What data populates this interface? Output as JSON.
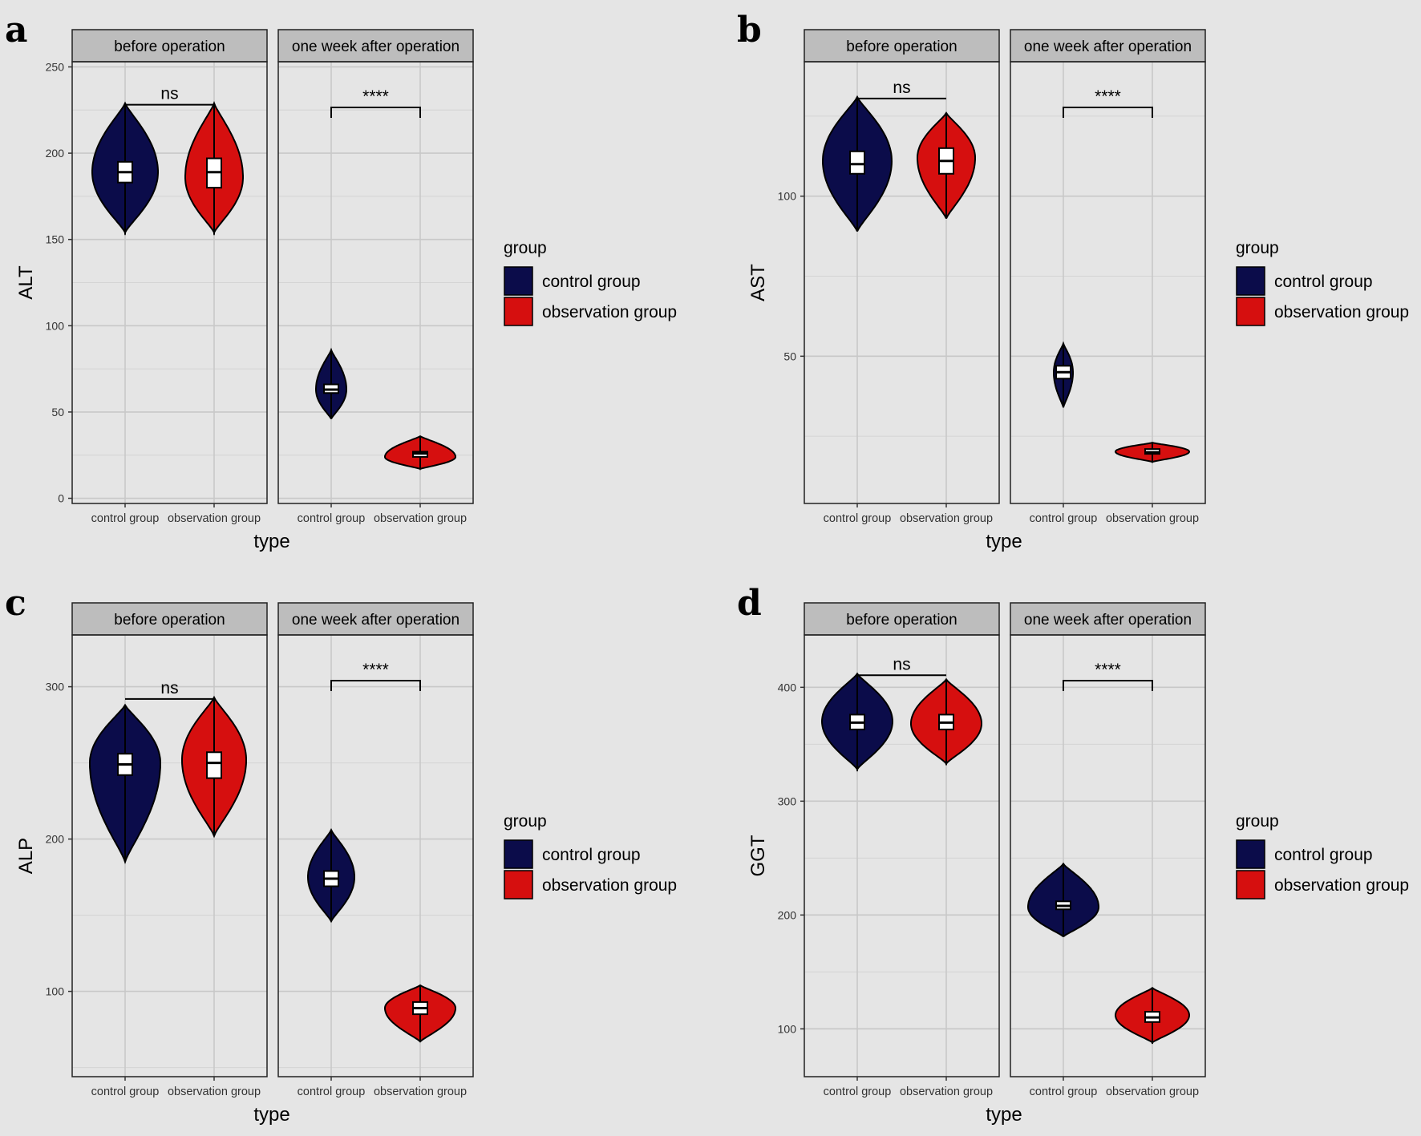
{
  "legend": {
    "title": "group",
    "items": [
      {
        "label": "control group",
        "color": "#0b0c4a"
      },
      {
        "label": "observation group",
        "color": "#d60f0f"
      }
    ]
  },
  "colors": {
    "background": "#e5e5e5",
    "control": "#0b0c4a",
    "observation": "#d60f0f",
    "strip": "#bdbdbd"
  },
  "chart_data": [
    {
      "type": "violin",
      "letter": "a",
      "ylabel": "ALT",
      "xlabel": "type",
      "ylim": [
        -3,
        253
      ],
      "yticks": [
        0,
        50,
        100,
        150,
        200,
        250
      ],
      "facets": [
        {
          "label": "before operation",
          "categories": [
            "control group",
            "observation group"
          ],
          "significance": "ns",
          "groups": [
            {
              "group": "control group",
              "min": 154,
              "max": 229,
              "q1": 183,
              "median": 189,
              "q3": 195,
              "mode": 189,
              "spread": 41
            },
            {
              "group": "observation group",
              "min": 154,
              "max": 229,
              "q1": 180,
              "median": 189,
              "q3": 197,
              "mode": 186,
              "spread": 36
            }
          ]
        },
        {
          "label": "one week after operation",
          "categories": [
            "control group",
            "observation group"
          ],
          "significance": "****",
          "groups": [
            {
              "group": "control group",
              "min": 46,
              "max": 86,
              "q1": 61,
              "median": 63,
              "q3": 66,
              "mode": 63,
              "spread": 19
            },
            {
              "group": "observation group",
              "min": 17,
              "max": 36,
              "q1": 24,
              "median": 26,
              "q3": 27,
              "mode": 24,
              "spread": 44
            }
          ]
        }
      ]
    },
    {
      "type": "violin",
      "letter": "b",
      "ylabel": "AST",
      "xlabel": "type",
      "ylim": [
        4,
        142
      ],
      "yticks": [
        50,
        100
      ],
      "facets": [
        {
          "label": "before operation",
          "categories": [
            "control group",
            "observation group"
          ],
          "significance": "ns",
          "groups": [
            {
              "group": "control group",
              "min": 89,
              "max": 131,
              "q1": 107,
              "median": 110,
              "q3": 114,
              "mode": 111,
              "spread": 43
            },
            {
              "group": "observation group",
              "min": 93,
              "max": 126,
              "q1": 107,
              "median": 111,
              "q3": 115,
              "mode": 112,
              "spread": 36
            }
          ]
        },
        {
          "label": "one week after operation",
          "categories": [
            "control group",
            "observation group"
          ],
          "significance": "****",
          "groups": [
            {
              "group": "control group",
              "min": 34,
              "max": 54,
              "q1": 43,
              "median": 45,
              "q3": 47,
              "mode": 45,
              "spread": 12
            },
            {
              "group": "observation group",
              "min": 17,
              "max": 23,
              "q1": 19.5,
              "median": 20,
              "q3": 21,
              "mode": 20.2,
              "spread": 46
            }
          ]
        }
      ]
    },
    {
      "type": "violin",
      "letter": "c",
      "ylabel": "ALP",
      "xlabel": "type",
      "ylim": [
        44,
        334
      ],
      "yticks": [
        100,
        200,
        300
      ],
      "facets": [
        {
          "label": "before operation",
          "categories": [
            "control group",
            "observation group"
          ],
          "significance": "ns",
          "groups": [
            {
              "group": "control group",
              "min": 185,
              "max": 288,
              "q1": 242,
              "median": 249,
              "q3": 256,
              "mode": 250,
              "spread": 44
            },
            {
              "group": "observation group",
              "min": 202,
              "max": 293,
              "q1": 240,
              "median": 250,
              "q3": 257,
              "mode": 252,
              "spread": 40
            }
          ]
        },
        {
          "label": "one week after operation",
          "categories": [
            "control group",
            "observation group"
          ],
          "significance": "****",
          "groups": [
            {
              "group": "control group",
              "min": 146,
              "max": 206,
              "q1": 169,
              "median": 174,
              "q3": 179,
              "mode": 175,
              "spread": 29
            },
            {
              "group": "observation group",
              "min": 67,
              "max": 104,
              "q1": 85,
              "median": 89,
              "q3": 93,
              "mode": 89,
              "spread": 44
            }
          ]
        }
      ]
    },
    {
      "type": "violin",
      "letter": "d",
      "ylabel": "GGT",
      "xlabel": "type",
      "ylim": [
        58,
        446
      ],
      "yticks": [
        100,
        200,
        300,
        400
      ],
      "facets": [
        {
          "label": "before operation",
          "categories": [
            "control group",
            "observation group"
          ],
          "significance": "ns",
          "groups": [
            {
              "group": "control group",
              "min": 328,
              "max": 412,
              "q1": 363,
              "median": 369,
              "q3": 376,
              "mode": 370,
              "spread": 44
            },
            {
              "group": "observation group",
              "min": 333,
              "max": 407,
              "q1": 363,
              "median": 369,
              "q3": 376,
              "mode": 368,
              "spread": 44
            }
          ]
        },
        {
          "label": "one week after operation",
          "categories": [
            "control group",
            "observation group"
          ],
          "significance": "****",
          "groups": [
            {
              "group": "control group",
              "min": 181,
              "max": 245,
              "q1": 205,
              "median": 208,
              "q3": 212,
              "mode": 207,
              "spread": 44
            },
            {
              "group": "observation group",
              "min": 88,
              "max": 136,
              "q1": 106,
              "median": 110,
              "q3": 115,
              "mode": 112,
              "spread": 46
            }
          ]
        }
      ]
    }
  ]
}
